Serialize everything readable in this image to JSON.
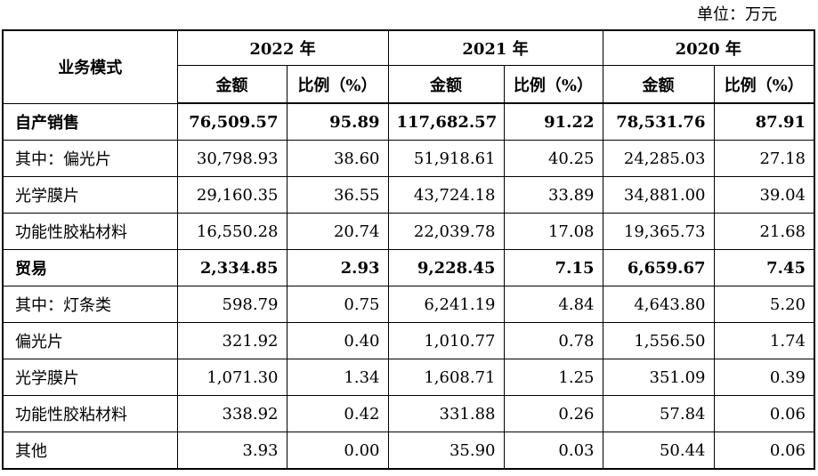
{
  "unit_label": "单位：万元",
  "header": {
    "category": "业务模式",
    "years": [
      "2022 年",
      "2021 年",
      "2020 年"
    ],
    "amount": "金额",
    "ratio": "比例（%）"
  },
  "rows": [
    {
      "label": "自产销售",
      "bold": true,
      "v": [
        "76,509.57",
        "95.89",
        "117,682.57",
        "91.22",
        "78,531.76",
        "87.91"
      ]
    },
    {
      "label": "其中：偏光片",
      "bold": false,
      "v": [
        "30,798.93",
        "38.60",
        "51,918.61",
        "40.25",
        "24,285.03",
        "27.18"
      ]
    },
    {
      "label": "光学膜片",
      "bold": false,
      "v": [
        "29,160.35",
        "36.55",
        "43,724.18",
        "33.89",
        "34,881.00",
        "39.04"
      ]
    },
    {
      "label": "功能性胶粘材料",
      "bold": false,
      "v": [
        "16,550.28",
        "20.74",
        "22,039.78",
        "17.08",
        "19,365.73",
        "21.68"
      ]
    },
    {
      "label": "贸易",
      "bold": true,
      "v": [
        "2,334.85",
        "2.93",
        "9,228.45",
        "7.15",
        "6,659.67",
        "7.45"
      ]
    },
    {
      "label": "其中：灯条类",
      "bold": false,
      "v": [
        "598.79",
        "0.75",
        "6,241.19",
        "4.84",
        "4,643.80",
        "5.20"
      ]
    },
    {
      "label": "偏光片",
      "bold": false,
      "v": [
        "321.92",
        "0.40",
        "1,010.77",
        "0.78",
        "1,556.50",
        "1.74"
      ]
    },
    {
      "label": "光学膜片",
      "bold": false,
      "v": [
        "1,071.30",
        "1.34",
        "1,608.71",
        "1.25",
        "351.09",
        "0.39"
      ]
    },
    {
      "label": "功能性胶粘材料",
      "bold": false,
      "v": [
        "338.92",
        "0.42",
        "331.88",
        "0.26",
        "57.84",
        "0.06"
      ]
    },
    {
      "label": "其他",
      "bold": false,
      "v": [
        "3.93",
        "0.00",
        "35.90",
        "0.03",
        "50.44",
        "0.06"
      ]
    }
  ]
}
